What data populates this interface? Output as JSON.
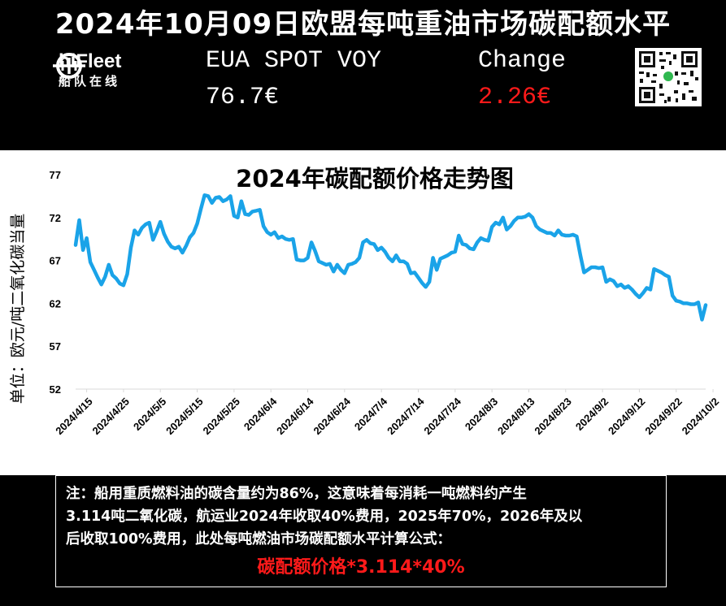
{
  "header": {
    "title": "2024年10月09日欧盟每吨重油市场碳配额水平",
    "logo_name": "hiFleet",
    "logo_sub": "船队在线",
    "eua_label": "EUA SPOT VOY",
    "eua_value": "76.7€",
    "change_label": "Change",
    "change_value": "2.26€"
  },
  "colors": {
    "background": "#000000",
    "line": "#1aa3e8",
    "change": "#ff1a1a",
    "formula": "#ff1a1a"
  },
  "chart_data": {
    "type": "line",
    "title": "2024年碳配额价格走势图",
    "xlabel": "",
    "ylabel": "单位：欧元/吨二氧化碳当量",
    "ylim": [
      52,
      77
    ],
    "yticks": [
      52,
      57,
      62,
      67,
      72,
      77
    ],
    "xticks": [
      "2024/4/15",
      "2024/4/25",
      "2024/5/5",
      "2024/5/15",
      "2024/5/25",
      "2024/6/4",
      "2024/6/14",
      "2024/6/24",
      "2024/7/4",
      "2024/7/14",
      "2024/7/24",
      "2024/8/3",
      "2024/8/13",
      "2024/8/23",
      "2024/9/2",
      "2024/9/12",
      "2024/9/22",
      "2024/10/2"
    ],
    "grid": false,
    "legend": "none",
    "series": [
      {
        "values": [
          [
            "2024-04-12",
            68.8
          ],
          [
            "2024-04-13",
            71.7
          ],
          [
            "2024-04-14",
            68.2
          ],
          [
            "2024-04-15",
            69.6
          ],
          [
            "2024-04-16",
            66.8
          ],
          [
            "2024-04-17",
            65.9
          ],
          [
            "2024-04-18",
            65.0
          ],
          [
            "2024-04-19",
            64.2
          ],
          [
            "2024-04-20",
            65.1
          ],
          [
            "2024-04-21",
            66.5
          ],
          [
            "2024-04-22",
            65.3
          ],
          [
            "2024-04-23",
            64.9
          ],
          [
            "2024-04-24",
            64.3
          ],
          [
            "2024-04-25",
            64.1
          ],
          [
            "2024-04-26",
            65.4
          ],
          [
            "2024-04-27",
            68.5
          ],
          [
            "2024-04-28",
            70.5
          ],
          [
            "2024-04-29",
            70.0
          ],
          [
            "2024-04-30",
            70.8
          ],
          [
            "2024-05-01",
            71.2
          ],
          [
            "2024-05-02",
            71.4
          ],
          [
            "2024-05-03",
            69.4
          ],
          [
            "2024-05-04",
            70.4
          ],
          [
            "2024-05-05",
            71.5
          ],
          [
            "2024-05-06",
            70.1
          ],
          [
            "2024-05-07",
            69.2
          ],
          [
            "2024-05-08",
            68.6
          ],
          [
            "2024-05-09",
            68.4
          ],
          [
            "2024-05-10",
            68.6
          ],
          [
            "2024-05-11",
            67.9
          ],
          [
            "2024-05-12",
            68.7
          ],
          [
            "2024-05-13",
            69.7
          ],
          [
            "2024-05-14",
            70.2
          ],
          [
            "2024-05-15",
            71.3
          ],
          [
            "2024-05-16",
            73.0
          ],
          [
            "2024-05-17",
            74.6
          ],
          [
            "2024-05-18",
            74.5
          ],
          [
            "2024-05-19",
            73.7
          ],
          [
            "2024-05-20",
            74.3
          ],
          [
            "2024-05-21",
            74.4
          ],
          [
            "2024-05-22",
            73.9
          ],
          [
            "2024-05-23",
            74.1
          ],
          [
            "2024-05-24",
            74.5
          ],
          [
            "2024-05-25",
            72.2
          ],
          [
            "2024-05-26",
            72.0
          ],
          [
            "2024-05-27",
            73.9
          ],
          [
            "2024-05-28",
            72.4
          ],
          [
            "2024-05-29",
            72.3
          ],
          [
            "2024-05-30",
            72.7
          ],
          [
            "2024-05-31",
            72.8
          ],
          [
            "2024-06-01",
            72.9
          ],
          [
            "2024-06-02",
            71.0
          ],
          [
            "2024-06-03",
            70.3
          ],
          [
            "2024-06-04",
            70.0
          ],
          [
            "2024-06-05",
            70.3
          ],
          [
            "2024-06-06",
            69.6
          ],
          [
            "2024-06-07",
            69.8
          ],
          [
            "2024-06-08",
            69.5
          ],
          [
            "2024-06-09",
            69.4
          ],
          [
            "2024-06-10",
            69.5
          ],
          [
            "2024-06-11",
            67.1
          ],
          [
            "2024-06-12",
            67.0
          ],
          [
            "2024-06-13",
            67.0
          ],
          [
            "2024-06-14",
            67.3
          ],
          [
            "2024-06-15",
            69.1
          ],
          [
            "2024-06-16",
            68.1
          ],
          [
            "2024-06-17",
            66.9
          ],
          [
            "2024-06-18",
            66.7
          ],
          [
            "2024-06-19",
            66.5
          ],
          [
            "2024-06-20",
            66.6
          ],
          [
            "2024-06-21",
            65.7
          ],
          [
            "2024-06-22",
            66.5
          ],
          [
            "2024-06-23",
            65.9
          ],
          [
            "2024-06-24",
            65.5
          ],
          [
            "2024-06-25",
            66.5
          ],
          [
            "2024-06-26",
            66.6
          ],
          [
            "2024-06-27",
            66.8
          ],
          [
            "2024-06-28",
            67.3
          ],
          [
            "2024-06-29",
            69.1
          ],
          [
            "2024-06-30",
            69.4
          ],
          [
            "2024-07-01",
            69.0
          ],
          [
            "2024-07-02",
            68.9
          ],
          [
            "2024-07-03",
            68.2
          ],
          [
            "2024-07-04",
            68.5
          ],
          [
            "2024-07-05",
            68.0
          ],
          [
            "2024-07-06",
            67.3
          ],
          [
            "2024-07-07",
            66.9
          ],
          [
            "2024-07-08",
            67.6
          ],
          [
            "2024-07-09",
            66.9
          ],
          [
            "2024-07-10",
            66.9
          ],
          [
            "2024-07-11",
            66.6
          ],
          [
            "2024-07-12",
            65.5
          ],
          [
            "2024-07-13",
            65.6
          ],
          [
            "2024-07-14",
            65.0
          ],
          [
            "2024-07-15",
            64.4
          ],
          [
            "2024-07-16",
            63.9
          ],
          [
            "2024-07-17",
            64.5
          ],
          [
            "2024-07-18",
            67.3
          ],
          [
            "2024-07-19",
            65.9
          ],
          [
            "2024-07-20",
            67.2
          ],
          [
            "2024-07-21",
            67.4
          ],
          [
            "2024-07-22",
            67.6
          ],
          [
            "2024-07-23",
            67.9
          ],
          [
            "2024-07-24",
            68.0
          ],
          [
            "2024-07-25",
            69.9
          ],
          [
            "2024-07-26",
            68.9
          ],
          [
            "2024-07-27",
            68.8
          ],
          [
            "2024-07-28",
            68.4
          ],
          [
            "2024-07-29",
            68.3
          ],
          [
            "2024-07-30",
            69.1
          ],
          [
            "2024-07-31",
            69.6
          ],
          [
            "2024-08-01",
            69.4
          ],
          [
            "2024-08-02",
            69.3
          ],
          [
            "2024-08-03",
            70.9
          ],
          [
            "2024-08-04",
            71.4
          ],
          [
            "2024-08-05",
            71.2
          ],
          [
            "2024-08-06",
            72.0
          ],
          [
            "2024-08-07",
            70.6
          ],
          [
            "2024-08-08",
            71.0
          ],
          [
            "2024-08-09",
            71.6
          ],
          [
            "2024-08-10",
            72.0
          ],
          [
            "2024-08-11",
            72.0
          ],
          [
            "2024-08-12",
            72.1
          ],
          [
            "2024-08-13",
            72.4
          ],
          [
            "2024-08-14",
            72.0
          ],
          [
            "2024-08-15",
            71.0
          ],
          [
            "2024-08-16",
            70.6
          ],
          [
            "2024-08-17",
            70.4
          ],
          [
            "2024-08-18",
            70.2
          ],
          [
            "2024-08-19",
            70.2
          ],
          [
            "2024-08-20",
            69.9
          ],
          [
            "2024-08-21",
            70.5
          ],
          [
            "2024-08-22",
            70.0
          ],
          [
            "2024-08-23",
            69.9
          ],
          [
            "2024-08-24",
            69.9
          ],
          [
            "2024-08-25",
            70.0
          ],
          [
            "2024-08-26",
            69.8
          ],
          [
            "2024-08-27",
            67.6
          ],
          [
            "2024-08-28",
            65.6
          ],
          [
            "2024-08-29",
            65.9
          ],
          [
            "2024-08-30",
            66.2
          ],
          [
            "2024-08-31",
            66.2
          ],
          [
            "2024-09-01",
            66.1
          ],
          [
            "2024-09-02",
            66.2
          ],
          [
            "2024-09-03",
            64.5
          ],
          [
            "2024-09-04",
            64.8
          ],
          [
            "2024-09-05",
            64.6
          ],
          [
            "2024-09-06",
            64.0
          ],
          [
            "2024-09-07",
            64.2
          ],
          [
            "2024-09-08",
            63.8
          ],
          [
            "2024-09-09",
            64.0
          ],
          [
            "2024-09-10",
            63.6
          ],
          [
            "2024-09-11",
            63.1
          ],
          [
            "2024-09-12",
            62.7
          ],
          [
            "2024-09-13",
            63.2
          ],
          [
            "2024-09-14",
            63.8
          ],
          [
            "2024-09-15",
            63.6
          ],
          [
            "2024-09-16",
            66.0
          ],
          [
            "2024-09-17",
            65.8
          ],
          [
            "2024-09-18",
            65.6
          ],
          [
            "2024-09-19",
            65.3
          ],
          [
            "2024-09-20",
            65.1
          ],
          [
            "2024-09-21",
            62.9
          ],
          [
            "2024-09-22",
            62.3
          ],
          [
            "2024-09-23",
            62.2
          ],
          [
            "2024-09-24",
            62.0
          ],
          [
            "2024-09-25",
            62.0
          ],
          [
            "2024-09-26",
            61.9
          ],
          [
            "2024-09-27",
            61.9
          ],
          [
            "2024-09-28",
            62.1
          ],
          [
            "2024-09-29",
            60.1
          ],
          [
            "2024-09-30",
            61.8
          ]
        ]
      }
    ]
  },
  "note": {
    "line1": "注：船用重质燃料油的碳含量约为86%，这意味着每消耗一吨燃料约产生",
    "line2": "3.114吨二氧化碳，航运业2024年收取40%费用，2025年70%，2026年及以",
    "line3": "后收取100%费用，此处每吨燃油市场碳配额水平计算公式：",
    "formula": "碳配额价格*3.114*40%"
  }
}
